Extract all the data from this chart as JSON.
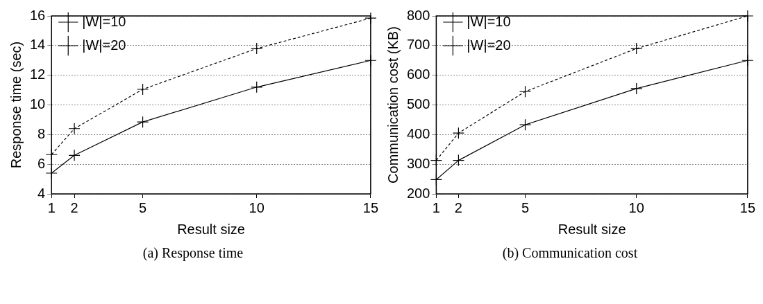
{
  "chart_data": [
    {
      "type": "line",
      "xlabel": "Result size",
      "ylabel": "Response time (sec)",
      "x": [
        1,
        2,
        5,
        10,
        15
      ],
      "xlim": [
        1,
        15
      ],
      "xticks": [
        1,
        2,
        5,
        10,
        15
      ],
      "ylim": [
        4,
        16
      ],
      "yticks": [
        4,
        6,
        8,
        10,
        12,
        14,
        16
      ],
      "grid": "y",
      "legend": "top left",
      "marker": "cross",
      "annotations": [
        "(a) Response time"
      ],
      "series": [
        {
          "name": "|W|=10",
          "color": "#000000",
          "line_style": "solid",
          "values": [
            5.4,
            6.6,
            8.85,
            11.2,
            13.0
          ]
        },
        {
          "name": "|W|=20",
          "color": "#000000",
          "line_style": "dashed",
          "values": [
            6.65,
            8.4,
            11.05,
            13.8,
            15.85
          ]
        }
      ]
    },
    {
      "type": "line",
      "xlabel": "Result size",
      "ylabel": "Communication cost (KB)",
      "x": [
        1,
        2,
        5,
        10,
        15
      ],
      "xlim": [
        1,
        15
      ],
      "xticks": [
        1,
        2,
        5,
        10,
        15
      ],
      "ylim": [
        200,
        800
      ],
      "yticks": [
        200,
        300,
        400,
        500,
        600,
        700,
        800
      ],
      "grid": "y",
      "legend": "top left",
      "marker": "cross",
      "annotations": [
        "(b) Communication cost"
      ],
      "series": [
        {
          "name": "|W|=10",
          "color": "#000000",
          "line_style": "solid",
          "values": [
            248,
            313,
            433,
            555,
            650
          ]
        },
        {
          "name": "|W|=20",
          "color": "#000000",
          "line_style": "dashed",
          "values": [
            313,
            405,
            545,
            690,
            800
          ]
        }
      ]
    }
  ]
}
